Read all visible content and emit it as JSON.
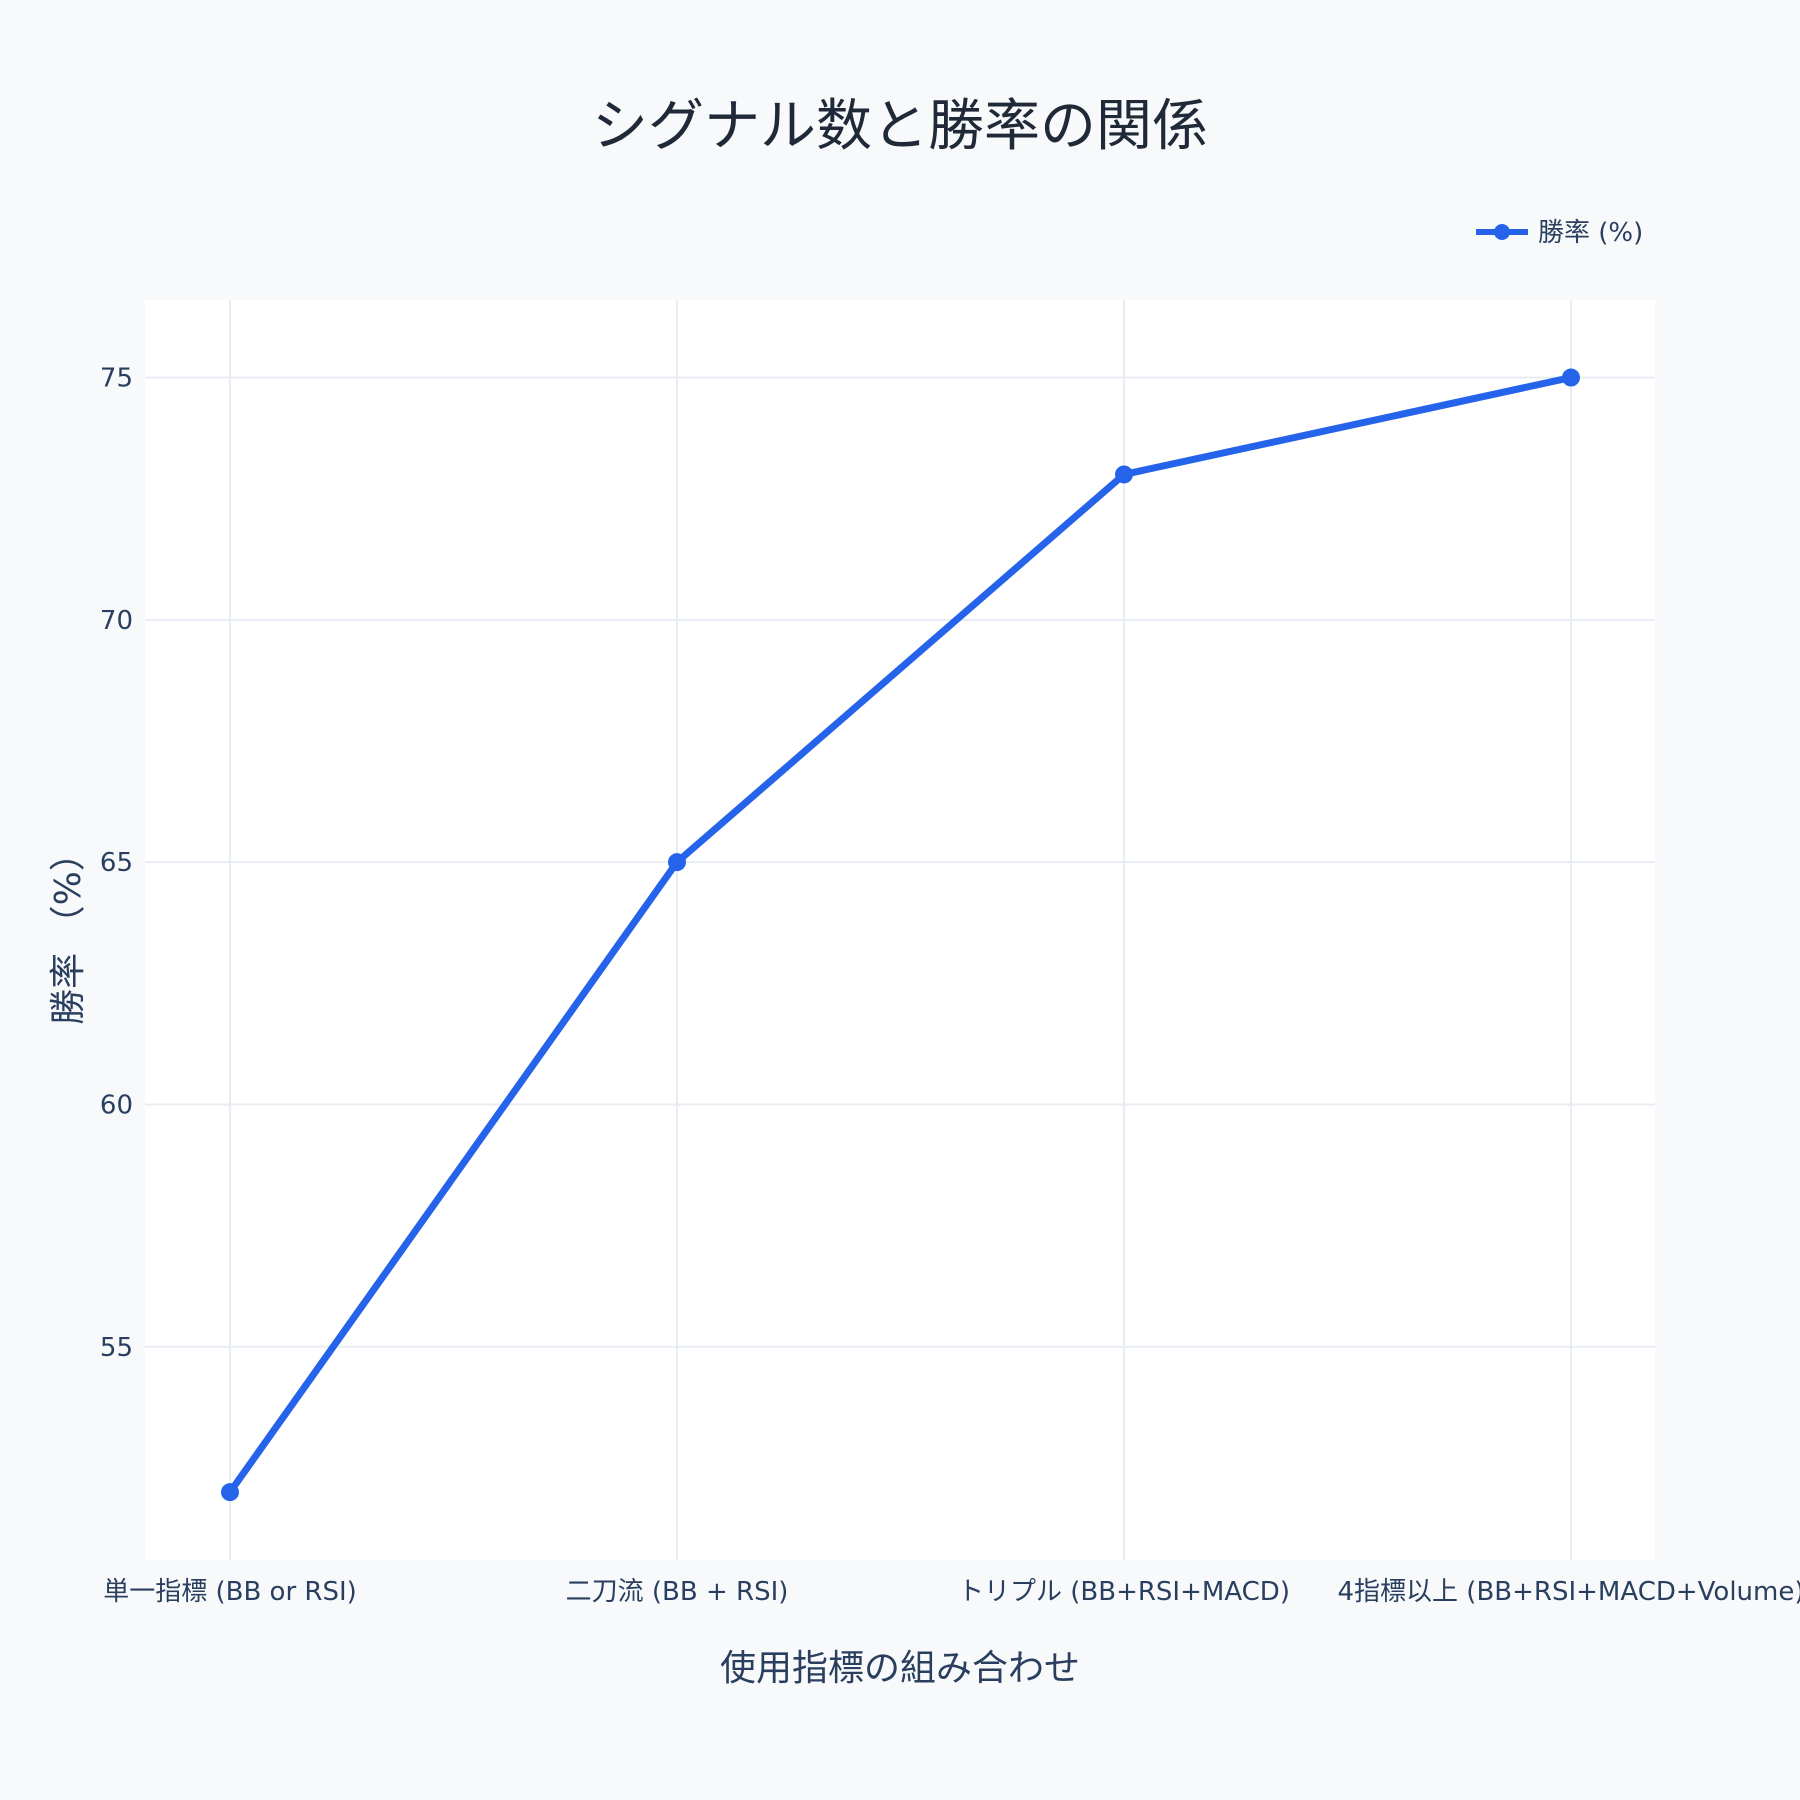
{
  "chart_data": {
    "type": "line",
    "title": "シグナル数と勝率の関係",
    "xlabel": "使用指標の組み合わせ",
    "ylabel": "勝率 （%）",
    "categories": [
      "単一指標 (BB or RSI)",
      "二刀流 (BB + RSI)",
      "トリプル (BB+RSI+MACD)",
      "4指標以上 (BB+RSI+MACD+Volume)"
    ],
    "series": [
      {
        "name": "勝率 (%)",
        "values": [
          52,
          65,
          73,
          75
        ],
        "color": "#2563eb"
      }
    ],
    "ylim": [
      50.6,
      76.6
    ],
    "yticks": [
      55,
      60,
      65,
      70,
      75
    ],
    "grid": true,
    "legend_position": "top-right"
  },
  "colors": {
    "background": "#f8f9fb",
    "plot_background": "#ffffff",
    "grid": "#e8edf4",
    "text": "#2a3f5f",
    "title": "#1f2937",
    "accent": "#2563eb"
  }
}
